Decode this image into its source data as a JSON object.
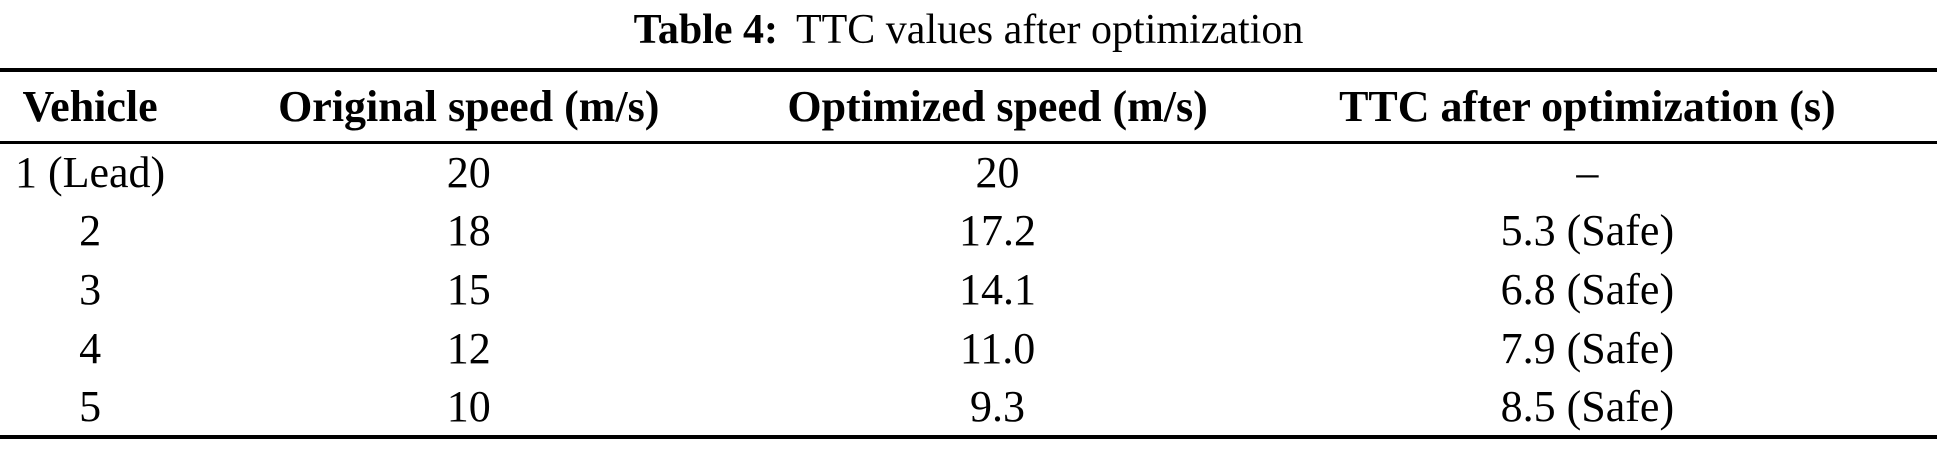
{
  "table": {
    "caption": {
      "label": "Table 4:",
      "text": "TTC values after optimization"
    },
    "columns": [
      "Vehicle",
      "Original speed (m/s)",
      "Optimized speed (m/s)",
      "TTC after optimization (s)"
    ],
    "rows": [
      [
        "1 (Lead)",
        "20",
        "20",
        "–"
      ],
      [
        "2",
        "18",
        "17.2",
        "5.3 (Safe)"
      ],
      [
        "3",
        "15",
        "14.1",
        "6.8 (Safe)"
      ],
      [
        "4",
        "12",
        "11.0",
        "7.9 (Safe)"
      ],
      [
        "5",
        "10",
        "9.3",
        "8.5 (Safe)"
      ]
    ],
    "colors": {
      "text": "#000000",
      "background": "#ffffff",
      "rule": "#000000"
    }
  }
}
